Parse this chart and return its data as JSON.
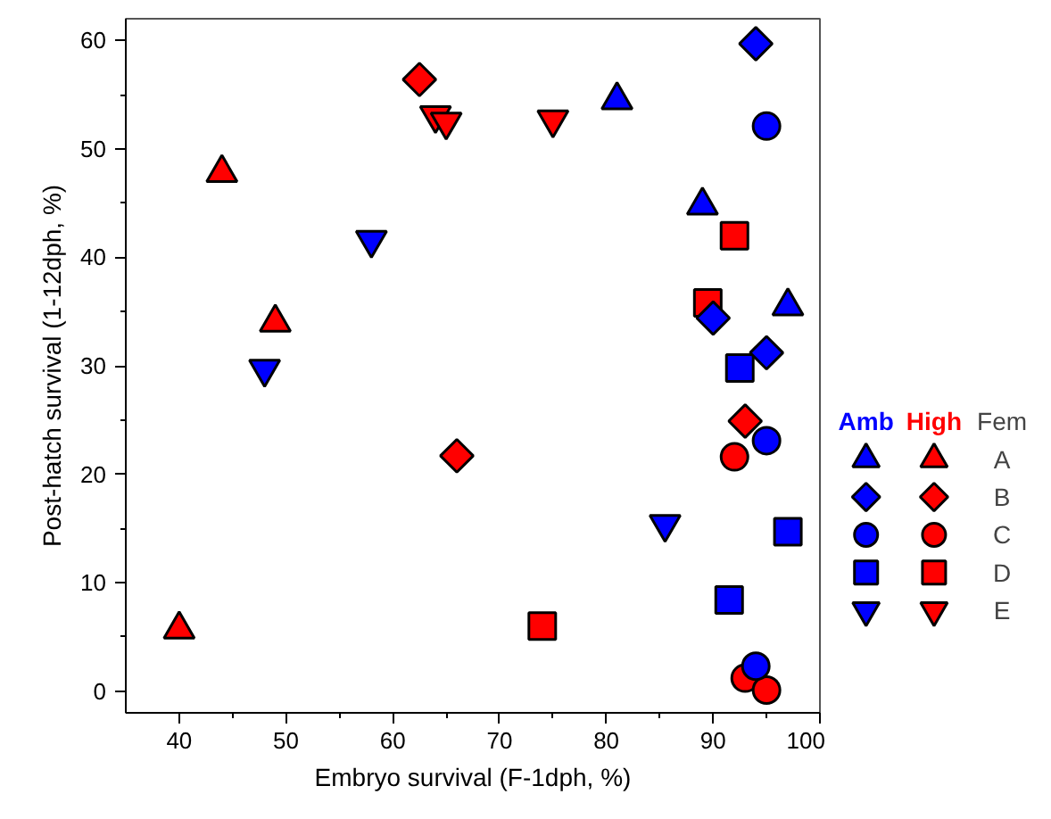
{
  "chart_data": {
    "type": "scatter",
    "xlabel": "Embryo survival (F-1dph, %)",
    "ylabel": "Post-hatch survival (1-12dph, %)",
    "xlim": [
      35,
      100
    ],
    "xticks": [
      40,
      50,
      60,
      70,
      80,
      90,
      100
    ],
    "ylim": [
      -2,
      62
    ],
    "yticks": [
      0,
      10,
      20,
      30,
      40,
      50,
      60
    ],
    "grid": false,
    "legend": "right",
    "legend_title": "Fem",
    "annotations": [
      "Amb",
      "High"
    ],
    "series": [
      {
        "color": "#0000ff",
        "marker": "triangle",
        "x": [
          81,
          89,
          97
        ],
        "values": [
          54.5,
          44.8,
          35.5
        ]
      },
      {
        "color": "#0000ff",
        "marker": "diamond",
        "x": [
          94,
          90,
          95
        ],
        "values": [
          59.7,
          34.4,
          31.2
        ]
      },
      {
        "color": "#0000ff",
        "marker": "circle",
        "x": [
          95,
          95,
          94
        ],
        "values": [
          52.1,
          23.1,
          2.3
        ]
      },
      {
        "color": "#0000ff",
        "marker": "square",
        "x": [
          92.5,
          91.5,
          97
        ],
        "values": [
          29.8,
          8.4,
          14.7
        ]
      },
      {
        "color": "#0000ff",
        "x": [
          48,
          58,
          85.5
        ],
        "values": [
          29.7,
          41.6,
          15.4
        ]
      },
      {
        "name": "A",
        "color": "#ff0000",
        "marker": "triangle",
        "x": [
          40,
          44,
          49
        ],
        "values": [
          5.7,
          47.8,
          34
        ]
      },
      {
        "name": "B",
        "color": "#ff0000",
        "marker": "diamond",
        "x": [
          62.5,
          66,
          93
        ],
        "values": [
          56.4,
          21.7,
          24.9
        ]
      },
      {
        "name": "C",
        "color": "#ff0000",
        "marker": "circle",
        "x": [
          92,
          93,
          95
        ],
        "values": [
          21.6,
          1.2,
          0.1
        ]
      },
      {
        "name": "D",
        "color": "#ff0000",
        "marker": "square",
        "x": [
          74,
          89.5,
          92
        ],
        "values": [
          6,
          35.8,
          42
        ]
      },
      {
        "name": "E",
        "color": "#ff0000",
        "x": [
          64,
          65,
          75
        ],
        "values": [
          53.1,
          52.5,
          52.7
        ]
      }
    ]
  }
}
